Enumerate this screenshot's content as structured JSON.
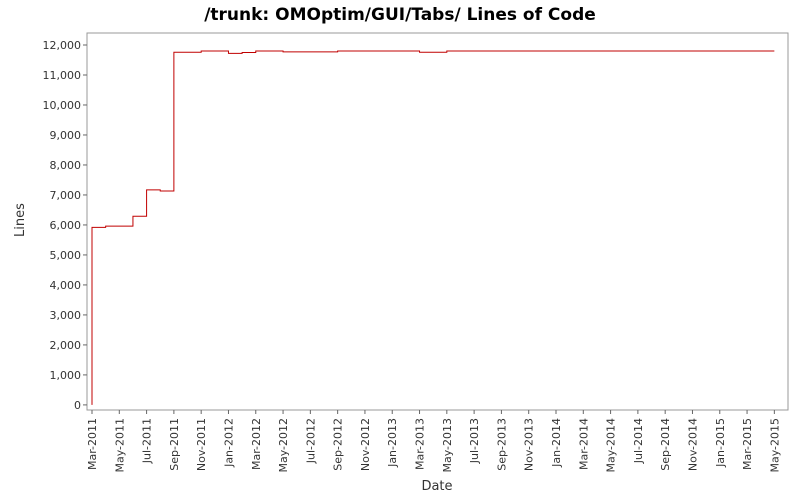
{
  "chart_data": {
    "type": "line",
    "title": "/trunk: OMOptim/GUI/Tabs/ Lines of Code",
    "x_label": "Date",
    "y_label": "Lines",
    "step": true,
    "x": [
      "2011-03",
      "2011-03",
      "2011-04",
      "2011-06",
      "2011-07",
      "2011-08",
      "2011-09",
      "2011-11",
      "2012-01",
      "2012-02",
      "2012-03",
      "2012-05",
      "2012-09",
      "2013-03",
      "2013-05",
      "2015-05"
    ],
    "series": [
      {
        "name": "Lines",
        "color": "#c00000",
        "values": [
          0,
          5920,
          5960,
          6290,
          7170,
          7130,
          11760,
          11800,
          11720,
          11750,
          11800,
          11770,
          11800,
          11760,
          11800,
          11800
        ]
      }
    ],
    "xlim": [
      "2011-03",
      "2015-06"
    ],
    "xticks": [
      {
        "value": "2011-03",
        "label": "Mar-2011"
      },
      {
        "value": "2011-05",
        "label": "May-2011"
      },
      {
        "value": "2011-07",
        "label": "Jul-2011"
      },
      {
        "value": "2011-09",
        "label": "Sep-2011"
      },
      {
        "value": "2011-11",
        "label": "Nov-2011"
      },
      {
        "value": "2012-01",
        "label": "Jan-2012"
      },
      {
        "value": "2012-03",
        "label": "Mar-2012"
      },
      {
        "value": "2012-05",
        "label": "May-2012"
      },
      {
        "value": "2012-07",
        "label": "Jul-2012"
      },
      {
        "value": "2012-09",
        "label": "Sep-2012"
      },
      {
        "value": "2012-11",
        "label": "Nov-2012"
      },
      {
        "value": "2013-01",
        "label": "Jan-2013"
      },
      {
        "value": "2013-03",
        "label": "Mar-2013"
      },
      {
        "value": "2013-05",
        "label": "May-2013"
      },
      {
        "value": "2013-07",
        "label": "Jul-2013"
      },
      {
        "value": "2013-09",
        "label": "Sep-2013"
      },
      {
        "value": "2013-11",
        "label": "Nov-2013"
      },
      {
        "value": "2014-01",
        "label": "Jan-2014"
      },
      {
        "value": "2014-03",
        "label": "Mar-2014"
      },
      {
        "value": "2014-05",
        "label": "May-2014"
      },
      {
        "value": "2014-07",
        "label": "Jul-2014"
      },
      {
        "value": "2014-09",
        "label": "Sep-2014"
      },
      {
        "value": "2014-11",
        "label": "Nov-2014"
      },
      {
        "value": "2015-01",
        "label": "Jan-2015"
      },
      {
        "value": "2015-03",
        "label": "Mar-2015"
      },
      {
        "value": "2015-05",
        "label": "May-2015"
      }
    ],
    "ylim": [
      -170,
      12400
    ],
    "yticks": [
      0,
      {
        "value": 1000,
        "label": "1,000"
      },
      {
        "value": 2000,
        "label": "2,000"
      },
      {
        "value": 3000,
        "label": "3,000"
      },
      {
        "value": 4000,
        "label": "4,000"
      },
      {
        "value": 5000,
        "label": "5,000"
      },
      {
        "value": 6000,
        "label": "6,000"
      },
      {
        "value": 7000,
        "label": "7,000"
      },
      {
        "value": 8000,
        "label": "8,000"
      },
      {
        "value": 9000,
        "label": "9,000"
      },
      {
        "value": 10000,
        "label": "10,000"
      },
      {
        "value": 11000,
        "label": "11,000"
      },
      {
        "value": 12000,
        "label": "12,000"
      }
    ]
  }
}
